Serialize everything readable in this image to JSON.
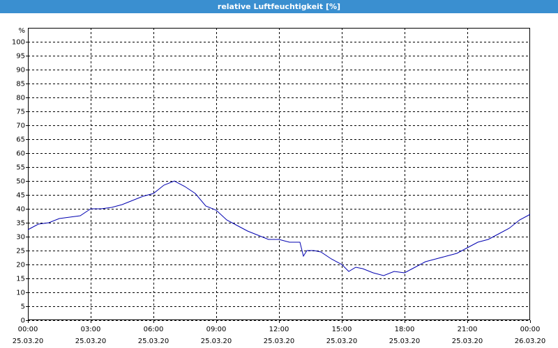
{
  "window": {
    "title": "relative Luftfeuchtigkeit [%]"
  },
  "colors": {
    "titlebar": "#3a8fd0",
    "line": "#0000b0",
    "grid": "#000000"
  },
  "chart_data": {
    "type": "line",
    "title": "relative Luftfeuchtigkeit [%]",
    "ylabel": "%",
    "xlabel": "",
    "ylim": [
      0,
      105
    ],
    "yticks": [
      0,
      5,
      10,
      15,
      20,
      25,
      30,
      35,
      40,
      45,
      50,
      55,
      60,
      65,
      70,
      75,
      80,
      85,
      90,
      95,
      100
    ],
    "xlim_hours": [
      0,
      24
    ],
    "xticks": [
      {
        "time": "00:00",
        "date": "25.03.20"
      },
      {
        "time": "03:00",
        "date": "25.03.20"
      },
      {
        "time": "06:00",
        "date": "25.03.20"
      },
      {
        "time": "09:00",
        "date": "25.03.20"
      },
      {
        "time": "12:00",
        "date": "25.03.20"
      },
      {
        "time": "15:00",
        "date": "25.03.20"
      },
      {
        "time": "18:00",
        "date": "25.03.20"
      },
      {
        "time": "21:00",
        "date": "25.03.20"
      },
      {
        "time": "00:00",
        "date": "26.03.20"
      }
    ],
    "grid": true,
    "series": [
      {
        "x": [
          "00:00",
          "00:30",
          "01:00",
          "01:30",
          "02:00",
          "02:30",
          "03:00",
          "03:30",
          "04:00",
          "04:30",
          "05:00",
          "05:30",
          "06:00",
          "06:30",
          "07:00",
          "07:30",
          "08:00",
          "08:30",
          "09:00",
          "09:30",
          "10:00",
          "10:30",
          "11:00",
          "11:30",
          "12:00",
          "12:30",
          "13:00",
          "13:10",
          "13:20",
          "13:40",
          "14:00",
          "14:30",
          "15:00",
          "15:20",
          "15:40",
          "16:00",
          "16:30",
          "17:00",
          "17:30",
          "18:00",
          "18:30",
          "19:00",
          "19:30",
          "20:00",
          "20:30",
          "21:00",
          "21:30",
          "22:00",
          "22:30",
          "23:00",
          "23:30",
          "24:00"
        ],
        "values": [
          32.5,
          34.5,
          35,
          36.5,
          37,
          37.5,
          40,
          40,
          40.5,
          41.5,
          43,
          44.5,
          45.5,
          48.5,
          50,
          48,
          45.5,
          41,
          39.5,
          36,
          34,
          32,
          30.5,
          29,
          29,
          28,
          28,
          23,
          25,
          25,
          24.5,
          22,
          20,
          17.5,
          19,
          18.5,
          17,
          16,
          17.5,
          17,
          19,
          21,
          22,
          23,
          24,
          26,
          28,
          29,
          31,
          33,
          36,
          38
        ]
      }
    ]
  }
}
